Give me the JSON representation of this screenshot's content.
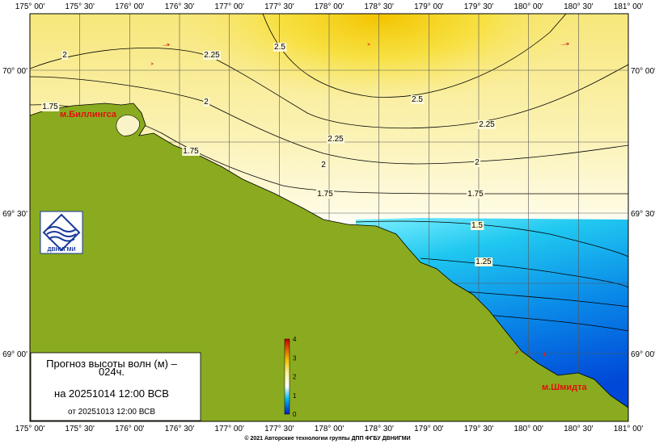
{
  "map": {
    "lon_labels": [
      "175° 00'",
      "175° 30'",
      "176° 00'",
      "176° 30'",
      "177° 00'",
      "177° 30'",
      "178° 00'",
      "178° 30'",
      "179° 00'",
      "179° 30'",
      "180° 00'",
      "180° 30'",
      "181° 00'"
    ],
    "lat_labels": [
      "70° 00'",
      "69° 30'",
      "69° 00'"
    ],
    "contour_labels": [
      "2",
      "2.25",
      "2.5",
      "2.5",
      "2.25",
      "2",
      "1.75",
      "1.75",
      "2.25",
      "2",
      "2",
      "1.75",
      "1.75",
      "1.5",
      "1.25"
    ],
    "places": [
      "м.Биллингса",
      "м.Шмидта"
    ],
    "logo": "ДВНИГМИ",
    "legend": {
      "title": "Прогноз высоты волн (м) –",
      "lead": "024ч.",
      "valid": "на 20251014 12:00 ВСВ",
      "issued": "от 20251013 12:00 ВСВ"
    },
    "colorbar_ticks": [
      0,
      1,
      2,
      3,
      4
    ]
  },
  "footer": "© 2021 Авторские технологии группы ДПП ФГБУ ДВНИГМИ"
}
